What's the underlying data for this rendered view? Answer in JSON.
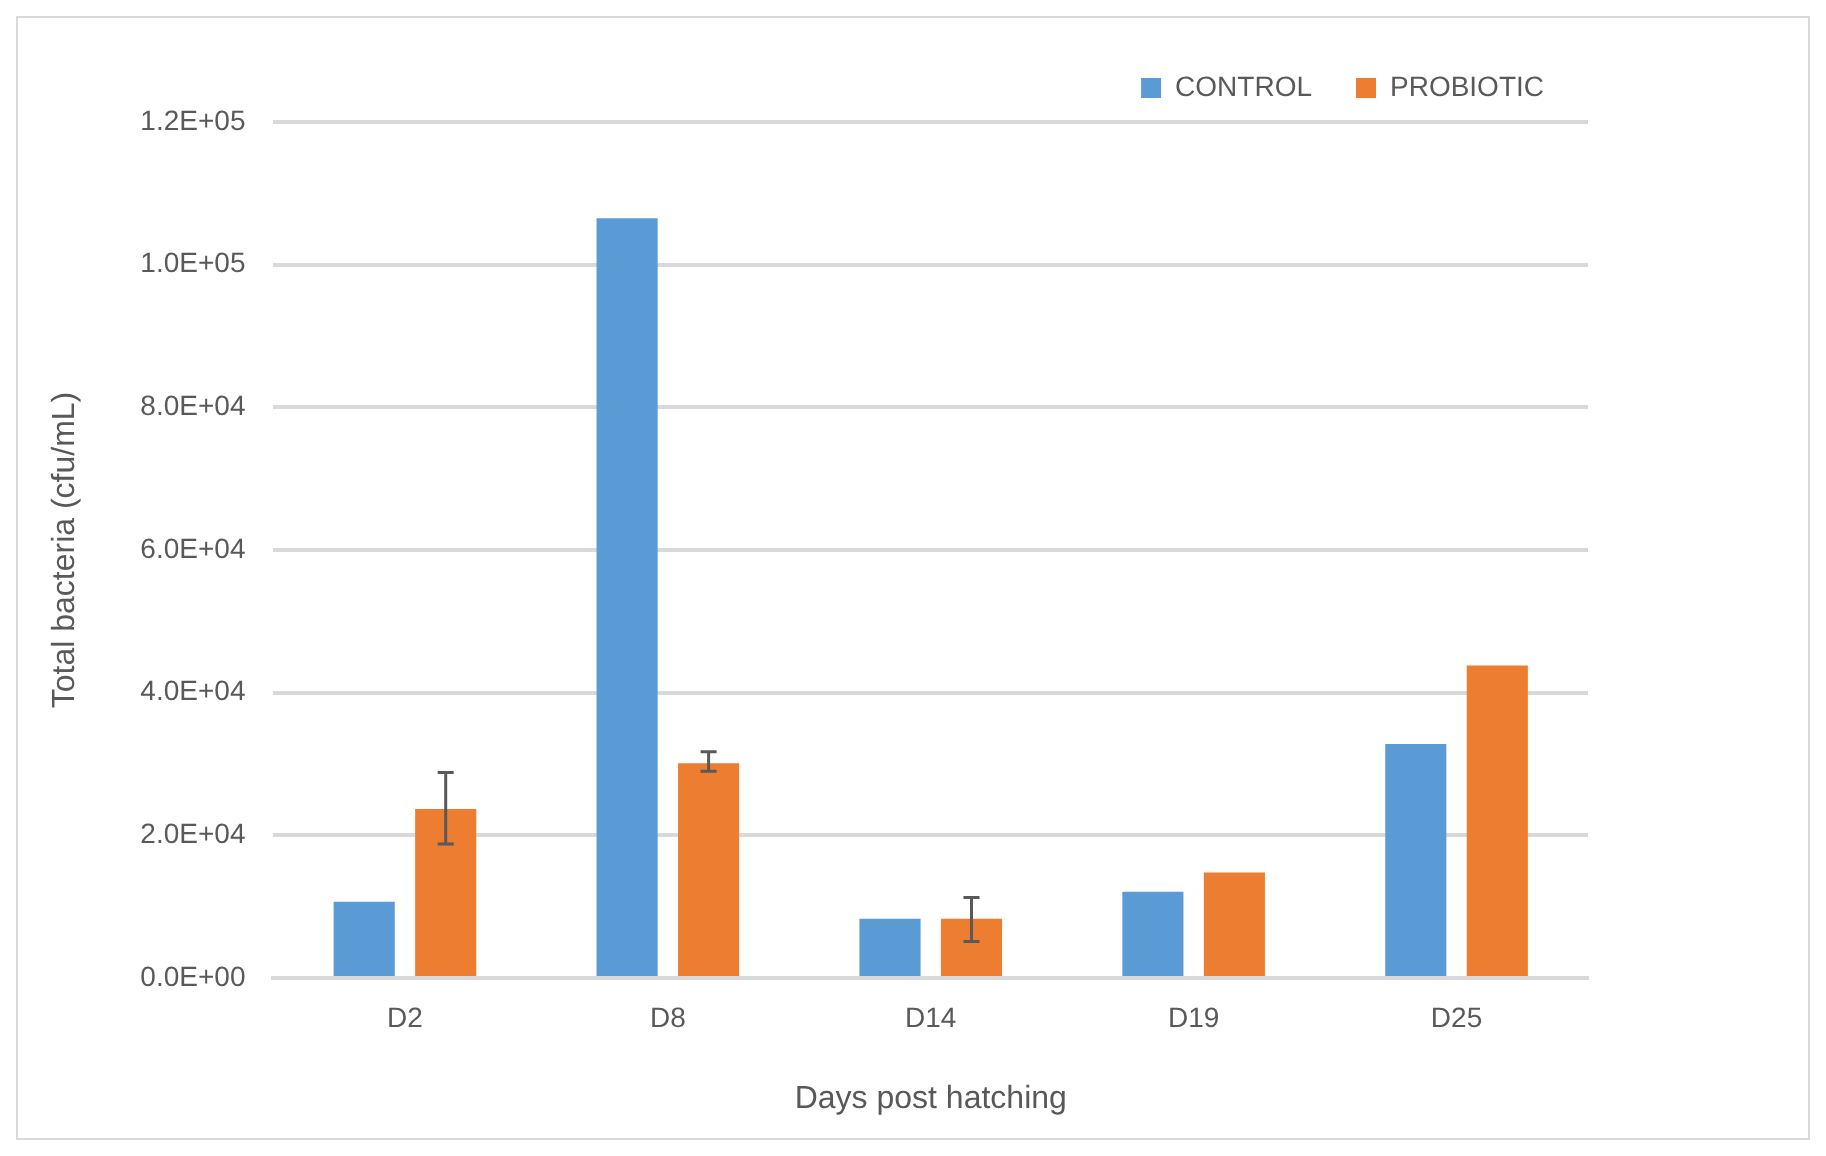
{
  "chart_data": {
    "type": "bar",
    "xlabel": "Days post hatching",
    "ylabel": "Total bacteria (cfu/mL)",
    "categories": [
      "D2",
      "D8",
      "D14",
      "D19",
      "D25"
    ],
    "series": [
      {
        "name": "CONTROL",
        "color": "#5b9bd5",
        "values": [
          10700,
          106500,
          8300,
          12100,
          32800
        ]
      },
      {
        "name": "PROBIOTIC",
        "color": "#ed7d31",
        "values": [
          23700,
          30100,
          8300,
          14800,
          43800
        ],
        "errors": [
          [
            18800,
            28800
          ],
          [
            29000,
            31700
          ],
          [
            5100,
            11300
          ],
          null,
          null
        ]
      }
    ],
    "ylim": [
      0,
      120000
    ],
    "yticks": [
      {
        "value": 0,
        "label": "0.0E+00"
      },
      {
        "value": 20000,
        "label": "2.0E+04"
      },
      {
        "value": 40000,
        "label": "4.0E+04"
      },
      {
        "value": 60000,
        "label": "6.0E+04"
      },
      {
        "value": 80000,
        "label": "8.0E+04"
      },
      {
        "value": 100000,
        "label": "1.0E+05"
      },
      {
        "value": 120000,
        "label": "1.2E+05"
      }
    ],
    "grid": "y",
    "legend": "top right"
  }
}
